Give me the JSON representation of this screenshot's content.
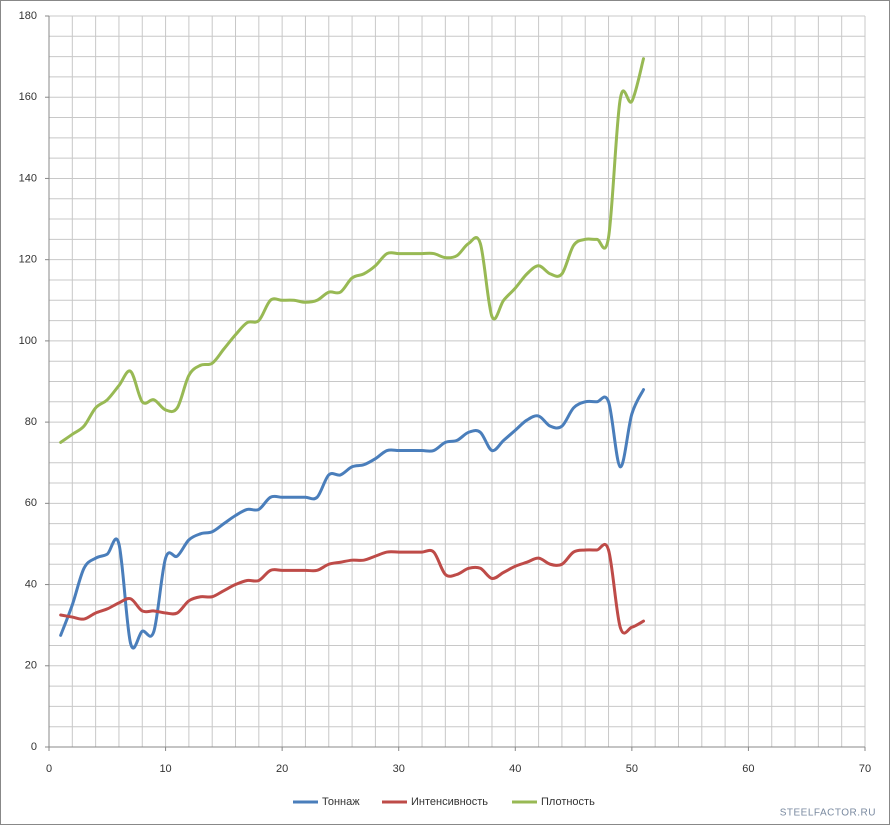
{
  "chart_data": {
    "type": "line",
    "smooth": true,
    "x": [
      1,
      2,
      3,
      4,
      5,
      6,
      7,
      8,
      9,
      10,
      11,
      12,
      13,
      14,
      15,
      16,
      17,
      18,
      19,
      20,
      21,
      22,
      23,
      24,
      25,
      26,
      27,
      28,
      29,
      30,
      31,
      32,
      33,
      34,
      35,
      36,
      37,
      38,
      39,
      40,
      41,
      42,
      43,
      44,
      45,
      46,
      47,
      48,
      49,
      50,
      51
    ],
    "series": [
      {
        "name": "Тоннаж",
        "color": "#4a7ebb",
        "values": [
          27.5,
          35,
          44,
          46.5,
          47.5,
          50,
          25.5,
          28.5,
          28.5,
          46.5,
          47,
          51,
          52.5,
          53,
          55,
          57,
          58.5,
          58.5,
          61.5,
          61.5,
          61.5,
          61.5,
          61.5,
          67,
          67,
          69,
          69.5,
          71,
          73,
          73,
          73,
          73,
          73,
          75,
          75.5,
          77.5,
          77.5,
          73,
          75.5,
          78,
          80.5,
          81.5,
          79,
          79,
          83.5,
          85,
          85,
          85,
          69,
          82,
          88
        ]
      },
      {
        "name": "Интенсивность",
        "color": "#be4b48",
        "values": [
          32.5,
          32,
          31.5,
          33,
          34,
          35.5,
          36.5,
          33.5,
          33.5,
          33,
          33,
          36,
          37,
          37,
          38.5,
          40,
          41,
          41,
          43.5,
          43.5,
          43.5,
          43.5,
          43.5,
          45,
          45.5,
          46,
          46,
          47,
          48,
          48,
          48,
          48,
          48,
          42.5,
          42.5,
          44,
          44,
          41.5,
          43,
          44.5,
          45.5,
          46.5,
          45,
          45,
          48,
          48.5,
          48.5,
          48.5,
          29.5,
          29.5,
          31
        ]
      },
      {
        "name": "Плотность",
        "color": "#98b954",
        "values": [
          75,
          77,
          79,
          83.5,
          85.5,
          89,
          92.5,
          85,
          85.5,
          83,
          83.5,
          91.5,
          94,
          94.5,
          98,
          101.5,
          104.5,
          105,
          110,
          110,
          110,
          109.5,
          110,
          112,
          112,
          115.5,
          116.5,
          118.5,
          121.5,
          121.5,
          121.5,
          121.5,
          121.5,
          120.5,
          121,
          124,
          124,
          106,
          110,
          113,
          116.5,
          118.5,
          116.5,
          116.5,
          123.5,
          125,
          125,
          125.5,
          159.5,
          159,
          169.5
        ]
      }
    ],
    "xlim": [
      0,
      70
    ],
    "xticks": [
      0,
      10,
      20,
      30,
      40,
      50,
      60,
      70
    ],
    "ylim": [
      0,
      180
    ],
    "yticks": [
      0,
      20,
      40,
      60,
      80,
      100,
      120,
      140,
      160,
      180
    ],
    "xgrid": [
      2,
      4,
      6,
      8,
      10,
      12,
      14,
      16,
      18,
      20,
      22,
      24,
      26,
      28,
      30,
      32,
      34,
      36,
      38,
      40,
      42,
      44,
      46,
      48,
      50,
      52,
      54,
      56,
      58,
      60,
      62,
      64,
      66,
      68,
      70
    ],
    "ygrid": [
      5,
      10,
      15,
      20,
      25,
      30,
      35,
      40,
      45,
      50,
      55,
      60,
      65,
      70,
      75,
      80,
      85,
      90,
      95,
      100,
      105,
      110,
      115,
      120,
      125,
      130,
      135,
      140,
      145,
      150,
      155,
      160,
      165,
      170,
      175,
      180
    ],
    "grid": true,
    "legend": "bottom",
    "watermark": "STEELFACTOR.RU"
  }
}
